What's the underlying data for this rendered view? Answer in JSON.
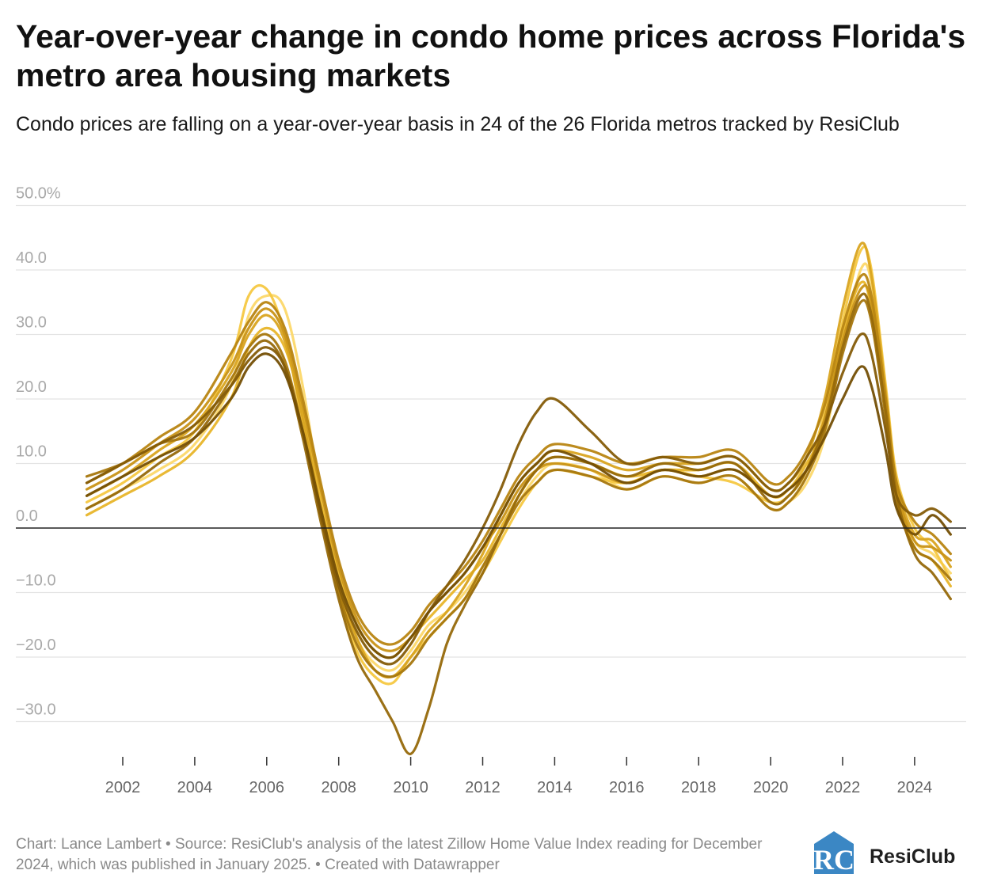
{
  "header": {
    "title": "Year-over-year change in condo home prices across Florida's metro area housing markets",
    "subtitle": "Condo prices are falling on a year-over-year basis in 24 of the 26 Florida metros tracked by ResiClub"
  },
  "footer": {
    "credit": "Chart: Lance Lambert • Source: ResiClub's analysis of the latest Zillow Home Value Index reading for December 2024, which was published in January 2025. • Created with Datawrapper"
  },
  "logo": {
    "text": "ResiClub",
    "mark": "RC",
    "icon": "resiclub-logo-icon",
    "color": "#3b87c4"
  },
  "chart_data": {
    "type": "line",
    "title": "Year-over-year change in condo home prices across Florida's metro area housing markets",
    "subtitle": "Condo prices are falling on a year-over-year basis in 24 of the 26 Florida metros tracked by ResiClub",
    "xlabel": "",
    "ylabel": "",
    "xlim": [
      2001.0,
      2025.0
    ],
    "ylim": [
      -36.0,
      51.0
    ],
    "x_ticks": [
      2002,
      2004,
      2006,
      2008,
      2010,
      2012,
      2014,
      2016,
      2018,
      2020,
      2022,
      2024
    ],
    "y_ticks": [
      {
        "value": 50,
        "label": "50.0%"
      },
      {
        "value": 40,
        "label": "40.0"
      },
      {
        "value": 30,
        "label": "30.0"
      },
      {
        "value": 20,
        "label": "20.0"
      },
      {
        "value": 10,
        "label": "10.0"
      },
      {
        "value": 0,
        "label": "0.0"
      },
      {
        "value": -10,
        "label": "−10.0"
      },
      {
        "value": -20,
        "label": "−20.0"
      },
      {
        "value": -30,
        "label": "−30.0"
      }
    ],
    "grid": true,
    "legend": "none",
    "colors": [
      "#fcd86a",
      "#f5c842",
      "#e8b52a",
      "#d9a420",
      "#c99417",
      "#b88512",
      "#a7770e",
      "#96690b",
      "#855c08",
      "#744f05"
    ],
    "x": [
      2001.0,
      2002.0,
      2003.0,
      2004.0,
      2005.0,
      2005.5,
      2006.0,
      2006.5,
      2007.0,
      2007.5,
      2008.0,
      2008.5,
      2009.0,
      2009.5,
      2010.0,
      2010.5,
      2011.0,
      2011.5,
      2012.0,
      2012.5,
      2013.0,
      2013.5,
      2014.0,
      2015.0,
      2016.0,
      2017.0,
      2018.0,
      2019.0,
      2020.0,
      2020.5,
      2021.0,
      2021.5,
      2022.0,
      2022.5,
      2022.8,
      2023.2,
      2023.5,
      2024.0,
      2024.5,
      2025.0
    ],
    "series": [
      {
        "values": [
          3.0,
          6.0,
          9.0,
          13.0,
          22.0,
          33.0,
          36.0,
          34.0,
          22.0,
          5.0,
          -8.0,
          -17.0,
          -21.0,
          -22.0,
          -19.0,
          -15.0,
          -13.0,
          -10.0,
          -6.0,
          -1.0,
          4.0,
          8.0,
          10.0,
          9.0,
          6.0,
          8.0,
          7.0,
          8.0,
          3.0,
          4.0,
          7.0,
          14.0,
          28.0,
          40.0,
          38.0,
          20.0,
          6.0,
          -2.0,
          -4.0,
          -7.0
        ]
      },
      {
        "values": [
          4.0,
          7.0,
          11.0,
          15.0,
          26.0,
          36.0,
          37.0,
          30.0,
          16.0,
          2.0,
          -10.0,
          -19.0,
          -23.0,
          -24.0,
          -20.0,
          -17.0,
          -14.0,
          -11.0,
          -7.0,
          -2.0,
          3.0,
          7.0,
          9.0,
          8.0,
          7.0,
          9.0,
          8.0,
          7.0,
          4.0,
          5.0,
          9.0,
          18.0,
          32.0,
          43.0,
          40.0,
          22.0,
          8.0,
          0.0,
          -3.0,
          -8.0
        ]
      },
      {
        "values": [
          2.0,
          5.0,
          8.0,
          12.0,
          20.0,
          28.0,
          31.0,
          28.0,
          18.0,
          4.0,
          -7.0,
          -15.0,
          -19.0,
          -20.0,
          -17.0,
          -14.0,
          -11.0,
          -8.0,
          -5.0,
          0.0,
          5.0,
          9.0,
          11.0,
          10.0,
          8.0,
          9.0,
          9.0,
          10.0,
          5.0,
          6.0,
          10.0,
          16.0,
          30.0,
          38.0,
          34.0,
          18.0,
          5.0,
          -3.0,
          -5.0,
          -9.0
        ]
      },
      {
        "values": [
          5.0,
          8.0,
          12.0,
          16.0,
          24.0,
          30.0,
          33.0,
          29.0,
          17.0,
          3.0,
          -9.0,
          -17.0,
          -22.0,
          -23.0,
          -20.0,
          -16.0,
          -13.0,
          -9.0,
          -4.0,
          2.0,
          7.0,
          10.0,
          12.0,
          11.0,
          9.0,
          10.0,
          10.0,
          11.0,
          6.0,
          7.0,
          11.0,
          20.0,
          34.0,
          44.0,
          39.0,
          21.0,
          7.0,
          -1.0,
          -2.0,
          -6.0
        ]
      },
      {
        "values": [
          6.0,
          9.0,
          13.0,
          17.0,
          25.0,
          31.0,
          34.0,
          30.0,
          19.0,
          6.0,
          -6.0,
          -14.0,
          -18.0,
          -19.0,
          -17.0,
          -13.0,
          -10.0,
          -7.0,
          -3.0,
          1.0,
          6.0,
          9.0,
          10.0,
          9.0,
          7.0,
          9.0,
          8.0,
          9.0,
          5.0,
          6.0,
          9.0,
          17.0,
          29.0,
          37.0,
          35.0,
          19.0,
          6.0,
          -2.0,
          -3.0,
          -5.0
        ]
      },
      {
        "values": [
          7.0,
          10.0,
          14.0,
          18.0,
          27.0,
          32.0,
          35.0,
          31.0,
          20.0,
          7.0,
          -5.0,
          -13.0,
          -17.0,
          -18.0,
          -16.0,
          -12.0,
          -9.0,
          -6.0,
          -2.0,
          3.0,
          8.0,
          11.0,
          13.0,
          12.0,
          10.0,
          11.0,
          11.0,
          12.0,
          7.0,
          8.0,
          12.0,
          19.0,
          31.0,
          39.0,
          36.0,
          20.0,
          7.0,
          1.0,
          -1.0,
          -4.0
        ]
      },
      {
        "values": [
          8.0,
          10.0,
          13.0,
          15.0,
          23.0,
          28.0,
          30.0,
          26.0,
          15.0,
          2.0,
          -10.0,
          -18.0,
          -22.0,
          -23.0,
          -21.0,
          -17.0,
          -14.0,
          -11.0,
          -6.0,
          -1.0,
          4.0,
          7.0,
          9.0,
          8.0,
          6.0,
          8.0,
          7.0,
          8.0,
          3.0,
          4.0,
          8.0,
          15.0,
          27.0,
          35.0,
          32.0,
          17.0,
          4.0,
          -3.0,
          -5.0,
          -8.0
        ]
      },
      {
        "values": [
          3.0,
          6.0,
          10.0,
          14.0,
          22.0,
          27.0,
          29.0,
          25.0,
          14.0,
          1.0,
          -11.0,
          -20.0,
          -25.0,
          -30.0,
          -35.0,
          -28.0,
          -18.0,
          -12.0,
          -7.0,
          -1.0,
          5.0,
          9.0,
          11.0,
          10.0,
          8.0,
          10.0,
          9.0,
          10.0,
          4.0,
          5.0,
          9.0,
          16.0,
          28.0,
          36.0,
          33.0,
          18.0,
          5.0,
          -4.0,
          -7.0,
          -11.0
        ]
      },
      {
        "values": [
          7.0,
          10.0,
          13.0,
          16.0,
          22.0,
          26.0,
          28.0,
          25.0,
          15.0,
          2.0,
          -9.0,
          -16.0,
          -20.0,
          -21.0,
          -18.0,
          -13.0,
          -9.0,
          -5.0,
          0.0,
          6.0,
          13.0,
          18.0,
          20.0,
          15.0,
          10.0,
          11.0,
          10.0,
          11.0,
          6.0,
          7.0,
          11.0,
          16.0,
          24.0,
          30.0,
          27.0,
          15.0,
          5.0,
          2.0,
          3.0,
          1.0
        ]
      },
      {
        "values": [
          5.0,
          8.0,
          11.0,
          14.0,
          20.0,
          25.0,
          27.0,
          24.0,
          15.0,
          3.0,
          -8.0,
          -15.0,
          -19.0,
          -20.0,
          -17.0,
          -13.0,
          -10.0,
          -7.0,
          -3.0,
          2.0,
          7.0,
          10.0,
          12.0,
          10.0,
          7.0,
          9.0,
          8.0,
          9.0,
          5.0,
          6.0,
          9.0,
          14.0,
          20.0,
          25.0,
          22.0,
          12.0,
          3.0,
          -1.0,
          2.0,
          -1.0
        ]
      }
    ]
  }
}
